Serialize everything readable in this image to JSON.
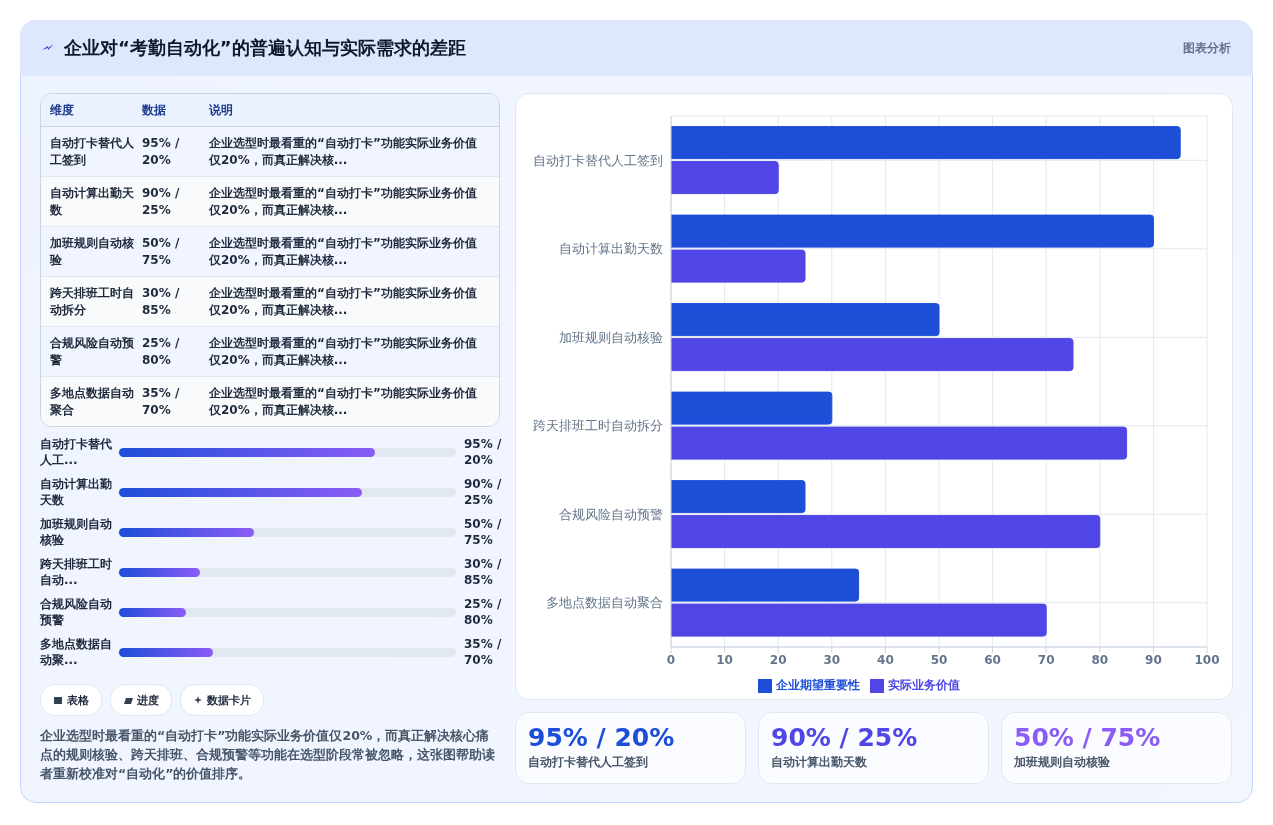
{
  "chart_data": [
    {
      "type": "other",
      "title": "企业对“考勤自动化”的普遍认知与实际需求的差距",
      "annotations": [
        "图表分析"
      ]
    },
    {
      "type": "other",
      "categories": [
        "维度",
        "数据",
        "说明"
      ],
      "annotations": [
        "自动打卡替代人工签到",
        "95% / 20%",
        "企业选型时最看重的“自动打卡”功能实际业务价值仅20%，而真正解决核...",
        "自动计算出勤天数",
        "90% / 25%",
        "企业选型时最看重的“自动打卡”功能实际业务价值仅20%，而真正解决核...",
        "加班规则自动核验",
        "50% / 75%",
        "企业选型时最看重的“自动打卡”功能实际业务价值仅20%，而真正解决核...",
        "跨天排班工时自动拆分",
        "30% / 85%",
        "企业选型时最看重的“自动打卡”功能实际业务价值仅20%，而真正解决核...",
        "合规风险自动预警",
        "25% / 80%",
        "企业选型时最看重的“自动打卡”功能实际业务价值仅20%，而真正解决核...",
        "多地点数据自动聚合",
        "35% / 70%",
        "企业选型时最看重的“自动打卡”功能实际业务价值仅20%，而真正解决核..."
      ]
    },
    {
      "type": "bar",
      "orientation": "horizontal",
      "xlim": [
        0,
        125
      ],
      "categories": [
        "自动打卡替代人工...",
        "自动计算出勤天数",
        "加班规则自动核验",
        "跨天排班工时自动...",
        "合规风险自动预警",
        "多地点数据自动聚..."
      ],
      "values": [
        95,
        90,
        50,
        30,
        25,
        35
      ],
      "color": "#1d4ed8",
      "value_labels": [
        "95% / 20%",
        "90% / 25%",
        "50% / 75%",
        "30% / 85%",
        "25% / 80%",
        "35% / 70%"
      ],
      "annotations": [
        "表格",
        "进度",
        "数据卡片",
        "企业选型时最看重的“自动打卡”功能实际业务价值仅20%，而真正解决核心痛点的规则核验、跨天排班、合规预警等功能在选型阶段常被忽略，这张图帮助读者重新校准对“自动化”的价值排序。"
      ]
    },
    {
      "type": "bar",
      "orientation": "horizontal",
      "categories": [
        "自动打卡替代人工签到",
        "自动计算出勤天数",
        "加班规则自动核验",
        "跨天排班工时自动拆分",
        "合规风险自动预警",
        "多地点数据自动聚合"
      ],
      "series": [
        {
          "name": "企业期望重要性",
          "color": "#1d4ed8",
          "values": [
            95,
            90,
            50,
            30,
            25,
            35
          ]
        },
        {
          "name": "实际业务价值",
          "color": "#4f46e5",
          "values": [
            20,
            25,
            75,
            85,
            80,
            70
          ]
        }
      ],
      "xlim": [
        0,
        100
      ],
      "xticks": [
        0,
        10,
        20,
        30,
        40,
        50,
        60,
        70,
        80,
        90,
        100
      ],
      "grid": true,
      "legend": "bottom"
    },
    {
      "type": "other",
      "annotations": [
        "95% / 20%",
        "自动打卡替代人工签到",
        "90% / 25%",
        "自动计算出勤天数",
        "50% / 75%",
        "加班规则自动核验"
      ],
      "colors": [
        "#1d4ed8",
        "#4f46e5",
        "#8b5cf6"
      ]
    }
  ]
}
